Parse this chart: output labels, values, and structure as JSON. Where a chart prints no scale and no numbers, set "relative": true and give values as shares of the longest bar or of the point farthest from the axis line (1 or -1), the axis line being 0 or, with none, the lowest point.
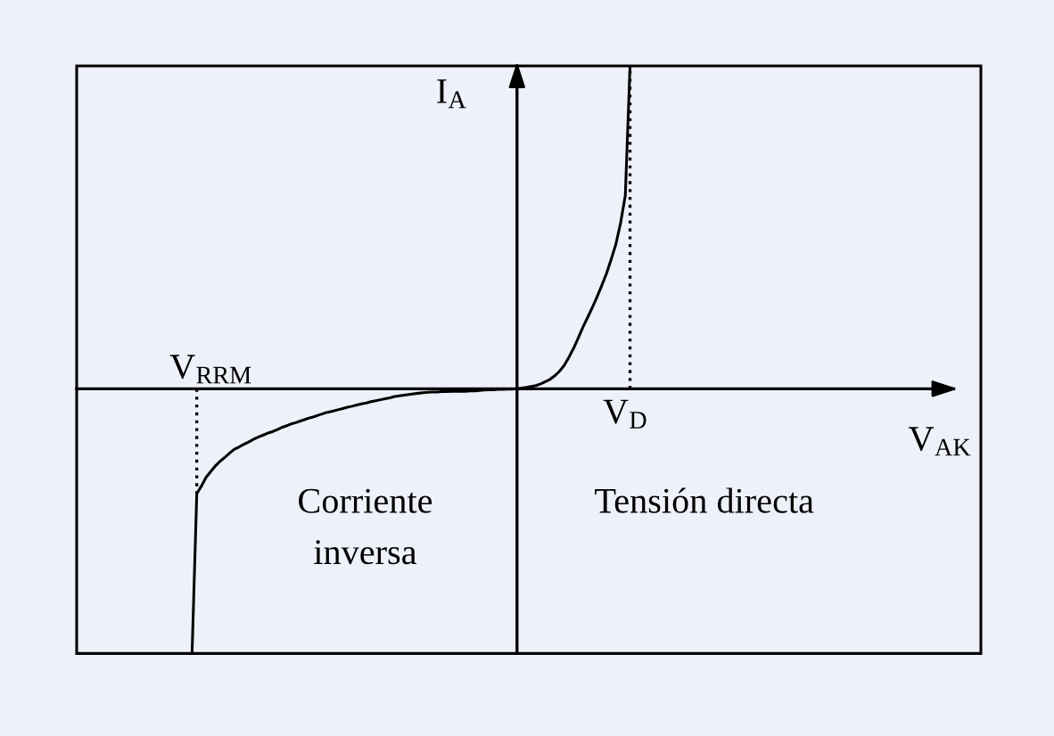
{
  "chart_data": {
    "type": "line",
    "relative": true,
    "xlabel": "V$_{AK}$",
    "ylabel": "I$_{A}$",
    "categories": [
      null,
      null,
      null,
      null,
      null,
      null,
      null,
      null,
      null,
      null,
      null,
      null,
      null,
      null,
      null,
      null,
      null,
      null,
      null,
      null,
      null,
      null,
      null,
      null,
      null,
      null,
      null,
      null,
      null,
      null,
      null,
      null,
      null,
      null,
      null,
      null,
      null,
      null,
      null,
      null,
      null,
      null,
      null,
      null,
      null,
      null,
      null,
      null,
      null,
      null,
      null,
      null,
      null,
      null,
      null,
      null,
      null,
      null,
      null,
      null,
      null,
      null,
      null,
      null,
      null,
      null,
      null,
      null,
      null,
      null,
      null,
      null,
      null,
      null,
      null,
      null,
      null,
      null,
      null,
      null,
      null,
      null,
      null,
      null,
      null,
      null,
      null,
      null,
      null,
      null,
      null,
      null,
      null,
      null,
      null,
      null,
      null,
      null,
      null,
      null,
      null,
      null,
      null,
      null,
      null,
      null,
      null,
      null,
      null,
      null,
      null,
      null,
      null,
      null,
      null,
      null,
      null,
      null,
      null,
      null,
      null,
      null,
      null,
      null,
      null,
      null,
      null,
      null,
      null,
      null,
      null,
      null,
      null,
      null,
      null,
      null,
      null,
      null,
      null,
      null,
      null,
      null,
      null,
      null,
      null,
      null,
      null,
      null,
      null,
      null,
      null,
      null,
      null,
      null,
      null,
      null,
      null,
      null,
      null,
      null,
      null,
      null,
      null,
      null,
      null,
      null,
      null,
      null,
      null,
      null,
      null,
      null,
      null,
      null,
      null,
      null,
      null,
      null,
      null,
      null,
      null,
      null,
      null,
      null,
      null,
      null,
      null,
      null,
      null,
      null,
      null,
      null
    ],
    "series": [
      {
        "color": "#000000",
        "values": [
          null,
          null,
          null,
          null,
          null,
          null,
          null,
          null,
          null,
          null,
          null,
          null,
          null,
          null,
          null,
          null,
          null,
          null,
          null,
          null,
          null,
          null,
          null,
          null,
          -0.82,
          -0.325,
          -0.301,
          -0.274,
          -0.256,
          -0.238,
          -0.224,
          -0.212,
          -0.199,
          -0.187,
          -0.18,
          -0.172,
          -0.165,
          -0.157,
          -0.15,
          -0.144,
          -0.138,
          -0.133,
          -0.127,
          -0.12,
          -0.115,
          -0.109,
          -0.105,
          -0.1,
          -0.095,
          -0.09,
          -0.086,
          -0.081,
          -0.076,
          -0.072,
          -0.069,
          -0.065,
          -0.061,
          -0.057,
          -0.054,
          -0.05,
          -0.047,
          -0.044,
          -0.04,
          -0.037,
          -0.034,
          -0.031,
          -0.028,
          -0.024,
          -0.022,
          -0.02,
          -0.018,
          -0.016,
          -0.014,
          -0.012,
          -0.011,
          -0.01,
          -0.01,
          -0.009,
          -0.009,
          -0.008,
          -0.008,
          -0.008,
          -0.008,
          -0.007,
          -0.007,
          -0.005,
          -0.004,
          -0.003,
          -0.003,
          -0.002,
          -0.002,
          -0.001,
          -0.001,
          0,
          0.002,
          0.004,
          0.007,
          0.01,
          0.015,
          0.022,
          0.029,
          0.04,
          0.054,
          0.072,
          0.097,
          0.125,
          0.157,
          0.191,
          0.221,
          0.252,
          0.285,
          0.32,
          0.357,
          0.401,
          0.448,
          0.514,
          0.599,
          1.0,
          null,
          null,
          null,
          null,
          null,
          null,
          null,
          null,
          null,
          null,
          null,
          null,
          null,
          null,
          null,
          null,
          null,
          null,
          null,
          null,
          null,
          null,
          null,
          null,
          null,
          null,
          null,
          null,
          null,
          null,
          null,
          null,
          null,
          null,
          null,
          null,
          null,
          null,
          null,
          null,
          null,
          null,
          null,
          null,
          null,
          null,
          null,
          null,
          null,
          null,
          null,
          null,
          null,
          null,
          null,
          null,
          null,
          null,
          null,
          null,
          null,
          null,
          null,
          null,
          null,
          null,
          null,
          null,
          null,
          null,
          null,
          null,
          null,
          null
        ]
      }
    ],
    "annotations": [
      "V$_{RRM}$",
      "V$_{D}$",
      "Corriente\ninversa",
      "Tensión directa"
    ]
  }
}
